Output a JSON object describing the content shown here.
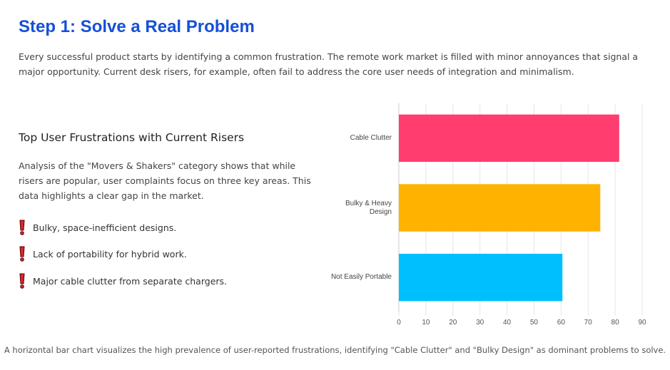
{
  "title": "Step 1: Solve a Real Problem",
  "intro": "Every successful product starts by identifying a common frustration. The remote work market is filled with minor annoyances that signal a major opportunity. Current desk risers, for example, often fail to address the core user needs of integration and minimalism.",
  "section": {
    "heading": "Top User Frustrations with Current Risers",
    "paragraph": "Analysis of the \"Movers & Shakers\" category shows that while risers are popular, user complaints focus on three key areas. This data highlights a clear gap in the market.",
    "items": [
      "Bulky, space-inefficient designs.",
      "Lack of portability for hybrid work.",
      "Major cable clutter from separate chargers."
    ]
  },
  "chart_data": {
    "type": "hbar",
    "categories": [
      "Cable Clutter",
      "Bulky & Heavy Design",
      "Not Easily Portable"
    ],
    "values": [
      81.5,
      74.5,
      60.5
    ],
    "colors": [
      "#ff3d6f",
      "#ffb300",
      "#00bfff"
    ],
    "xlim": [
      0,
      90
    ],
    "xticks": [
      0,
      10,
      20,
      30,
      40,
      50,
      60,
      70,
      80,
      90
    ],
    "grid": true
  },
  "caption": "A horizontal bar chart visualizes the high prevalence of user-reported frustrations, identifying \"Cable Clutter\" and \"Bulky Design\" as dominant problems to solve."
}
